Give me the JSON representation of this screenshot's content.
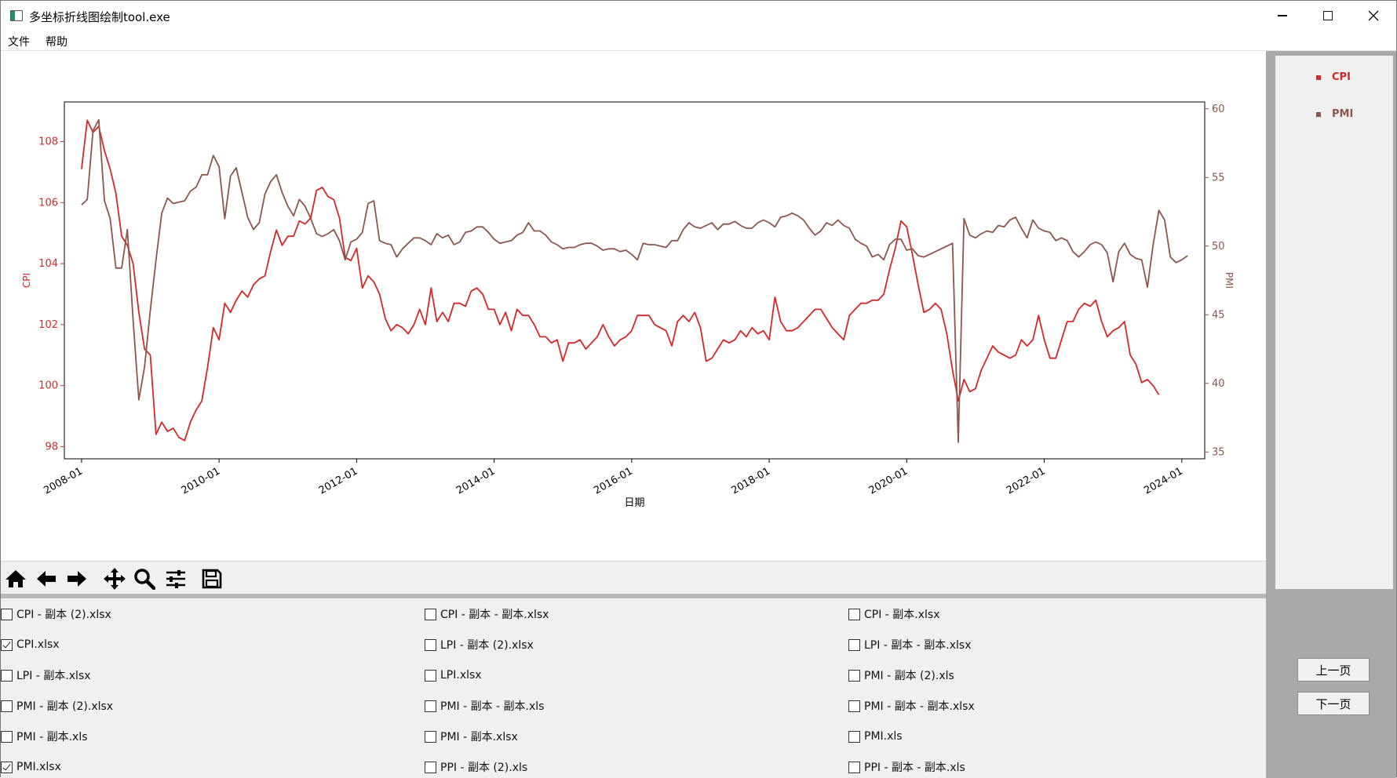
{
  "window": {
    "title": "多坐标折线图绘制tool.exe"
  },
  "menu": {
    "file": "文件",
    "help": "帮助"
  },
  "chart_data": {
    "type": "line",
    "xlabel": "日期",
    "x_ticks": [
      "2008-01",
      "2010-01",
      "2012-01",
      "2014-01",
      "2016-01",
      "2018-01",
      "2020-01",
      "2022-01",
      "2024-01"
    ],
    "x_range": [
      "2007-10",
      "2024-05"
    ],
    "y_left": {
      "label": "CPI",
      "range": [
        97.6,
        109.3
      ],
      "ticks": [
        98,
        100,
        102,
        104,
        106,
        108
      ],
      "color": "#d62728"
    },
    "y_right": {
      "label": "PMI",
      "range": [
        34.5,
        60.5
      ],
      "ticks": [
        35,
        40,
        45,
        50,
        55,
        60
      ],
      "color": "#8c564b"
    },
    "series": [
      {
        "name": "CPI",
        "axis": "left",
        "color": "#d62728",
        "start": "2008-01",
        "values": [
          107.1,
          108.7,
          108.3,
          108.5,
          107.7,
          107.1,
          106.3,
          104.9,
          104.6,
          104.0,
          102.4,
          101.2,
          101.0,
          98.4,
          98.8,
          98.5,
          98.6,
          98.3,
          98.2,
          98.8,
          99.2,
          99.5,
          100.6,
          101.9,
          101.5,
          102.7,
          102.4,
          102.8,
          103.1,
          102.9,
          103.3,
          103.5,
          103.6,
          104.4,
          105.1,
          104.6,
          104.9,
          104.9,
          105.4,
          105.3,
          105.5,
          106.4,
          106.5,
          106.2,
          106.1,
          105.5,
          104.2,
          104.1,
          104.5,
          103.2,
          103.6,
          103.4,
          103.0,
          102.2,
          101.8,
          102.0,
          101.9,
          101.7,
          102.0,
          102.5,
          102.0,
          103.2,
          102.1,
          102.4,
          102.1,
          102.7,
          102.7,
          102.6,
          103.1,
          103.2,
          103.0,
          102.5,
          102.5,
          102.0,
          102.4,
          101.8,
          102.5,
          102.3,
          102.3,
          102.0,
          101.6,
          101.6,
          101.4,
          101.5,
          100.8,
          101.4,
          101.4,
          101.5,
          101.2,
          101.4,
          101.6,
          102.0,
          101.6,
          101.3,
          101.5,
          101.6,
          101.8,
          102.3,
          102.3,
          102.3,
          102.0,
          101.9,
          101.8,
          101.3,
          102.1,
          102.3,
          102.1,
          102.4,
          101.9,
          100.8,
          100.9,
          101.2,
          101.5,
          101.4,
          101.5,
          101.8,
          101.6,
          101.9,
          101.7,
          101.8,
          101.5,
          102.9,
          102.1,
          101.8,
          101.8,
          101.9,
          102.1,
          102.3,
          102.5,
          102.5,
          102.2,
          101.9,
          101.7,
          101.5,
          102.3,
          102.5,
          102.7,
          102.7,
          102.8,
          102.8,
          103.0,
          103.8,
          104.5,
          105.4,
          105.2,
          104.3,
          103.3,
          102.4,
          102.5,
          102.7,
          102.5,
          101.7,
          100.5,
          99.5,
          100.2,
          99.8,
          99.9,
          100.5,
          100.9,
          101.3,
          101.1,
          101.0,
          100.9,
          101.0,
          101.5,
          101.3,
          101.5,
          102.3,
          101.5,
          100.9,
          100.9,
          101.5,
          102.1,
          102.1,
          102.5,
          102.7,
          102.6,
          102.8,
          102.1,
          101.6,
          101.8,
          101.9,
          102.1,
          101.0,
          100.7,
          100.1,
          100.2,
          100.0,
          99.7
        ]
      },
      {
        "name": "PMI",
        "axis": "right",
        "color": "#8c564b",
        "start": "2008-01",
        "values": [
          53.0,
          53.4,
          58.4,
          59.2,
          53.3,
          52.0,
          48.4,
          48.4,
          51.2,
          44.6,
          38.8,
          41.2,
          45.3,
          49.0,
          52.4,
          53.5,
          53.1,
          53.2,
          53.3,
          54.0,
          54.3,
          55.2,
          55.2,
          56.6,
          55.8,
          52.0,
          55.1,
          55.7,
          53.9,
          52.1,
          51.2,
          51.7,
          53.8,
          54.7,
          55.2,
          53.9,
          52.9,
          52.2,
          53.4,
          52.9,
          52.0,
          50.9,
          50.7,
          50.9,
          51.2,
          50.4,
          49.0,
          50.3,
          50.5,
          51.0,
          53.1,
          53.3,
          50.4,
          50.2,
          50.1,
          49.2,
          49.8,
          50.2,
          50.6,
          50.6,
          50.4,
          50.1,
          50.9,
          50.6,
          50.8,
          50.1,
          50.3,
          51.0,
          51.1,
          51.4,
          51.4,
          51.0,
          50.5,
          50.2,
          50.3,
          50.4,
          50.8,
          51.0,
          51.7,
          51.1,
          51.1,
          50.8,
          50.3,
          50.1,
          49.8,
          49.9,
          49.9,
          50.1,
          50.2,
          50.2,
          50.0,
          49.7,
          49.8,
          49.8,
          49.6,
          49.7,
          49.4,
          49.0,
          50.2,
          50.1,
          50.1,
          50.0,
          49.9,
          50.4,
          50.4,
          51.2,
          51.7,
          51.4,
          51.3,
          51.5,
          51.7,
          51.2,
          51.6,
          51.6,
          51.8,
          51.5,
          51.3,
          51.3,
          51.7,
          51.9,
          51.7,
          51.4,
          52.1,
          52.2,
          52.4,
          52.2,
          51.9,
          51.3,
          50.8,
          51.1,
          51.7,
          51.5,
          51.9,
          51.5,
          51.3,
          50.5,
          50.2,
          50.0,
          49.2,
          49.4,
          49.0,
          50.1,
          50.5,
          50.5,
          49.7,
          49.8,
          49.3,
          49.2,
          49.4,
          49.6,
          49.8,
          50.0,
          50.2,
          35.7,
          52.0,
          50.8,
          50.6,
          50.9,
          51.1,
          51.0,
          51.5,
          51.4,
          51.9,
          52.1,
          51.3,
          50.6,
          51.9,
          51.3,
          51.1,
          51.0,
          50.4,
          50.6,
          50.4,
          49.6,
          49.2,
          49.6,
          50.1,
          50.3,
          50.1,
          49.5,
          47.4,
          49.6,
          50.2,
          49.4,
          49.1,
          49.0,
          47.0,
          50.1,
          52.6,
          51.9,
          49.2,
          48.8,
          49.0,
          49.3
        ]
      }
    ]
  },
  "toolbar": [
    "home-icon",
    "back-icon",
    "forward-icon",
    "pan-icon",
    "zoom-icon",
    "configure-icon",
    "save-icon"
  ],
  "files": [
    {
      "label": "CPI - 副本 (2).xlsx",
      "checked": false
    },
    {
      "label": "CPI - 副本 - 副本.xlsx",
      "checked": false
    },
    {
      "label": "CPI - 副本.xlsx",
      "checked": false
    },
    {
      "label": "CPI.xlsx",
      "checked": true
    },
    {
      "label": "LPI - 副本 (2).xlsx",
      "checked": false
    },
    {
      "label": "LPI - 副本 - 副本.xlsx",
      "checked": false
    },
    {
      "label": "LPI - 副本.xlsx",
      "checked": false
    },
    {
      "label": "LPI.xlsx",
      "checked": false
    },
    {
      "label": "PMI - 副本 (2).xls",
      "checked": false
    },
    {
      "label": "PMI - 副本 (2).xlsx",
      "checked": false
    },
    {
      "label": "PMI - 副本 - 副本.xls",
      "checked": false
    },
    {
      "label": "PMI - 副本 - 副本.xlsx",
      "checked": false
    },
    {
      "label": "PMI - 副本.xls",
      "checked": false
    },
    {
      "label": "PMI - 副本.xlsx",
      "checked": false
    },
    {
      "label": "PMI.xls",
      "checked": false
    },
    {
      "label": "PMI.xlsx",
      "checked": true
    },
    {
      "label": "PPI - 副本 (2).xls",
      "checked": false
    },
    {
      "label": "PPI - 副本 - 副本.xls",
      "checked": false
    }
  ],
  "legend": [
    {
      "label": "CPI",
      "color": "#d62728"
    },
    {
      "label": "PMI",
      "color": "#8c564b"
    }
  ],
  "pager": {
    "prev": "上一页",
    "next": "下一页"
  }
}
